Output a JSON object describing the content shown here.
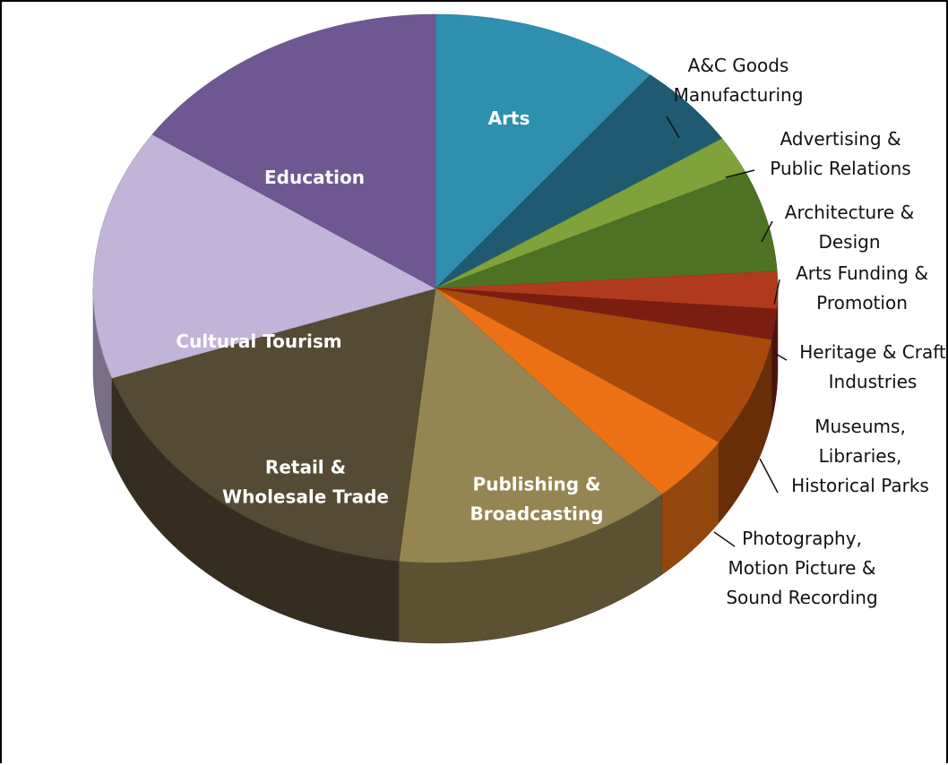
{
  "chart_data": {
    "type": "pie",
    "title": "",
    "style": "3d",
    "slices": [
      {
        "label": "Arts",
        "value": 10.8,
        "color": "#2E8FAE",
        "label_style": "inside"
      },
      {
        "label": "A&C Goods\nManufacturing",
        "value": 5.0,
        "color": "#1F5A70",
        "label_style": "outside"
      },
      {
        "label": "Advertising &\nPublic Relations",
        "value": 2.2,
        "color": "#7FA33A",
        "label_style": "outside"
      },
      {
        "label": "Architecture &\nDesign",
        "value": 6.0,
        "color": "#4E7224",
        "label_style": "outside"
      },
      {
        "label": "Arts Funding &\nPromotion",
        "value": 2.2,
        "color": "#B03A1E",
        "label_style": "outside"
      },
      {
        "label": "Heritage & Craft\nIndustries",
        "value": 1.8,
        "color": "#7A1E12",
        "label_style": "outside"
      },
      {
        "label": "Museums,\nLibraries,\nHistorical Parks",
        "value": 6.5,
        "color": "#A84A0C",
        "label_style": "outside"
      },
      {
        "label": "Photography,\nMotion Picture &\nSound Recording",
        "value": 4.0,
        "color": "#EE7215",
        "label_style": "outside"
      },
      {
        "label": "Publishing &\nBroadcasting",
        "value": 13.2,
        "color": "#958552",
        "label_style": "inside"
      },
      {
        "label": "Retail &\nWholesale Trade",
        "value": 18.0,
        "color": "#554A33",
        "label_style": "inside"
      },
      {
        "label": "Cultural Tourism",
        "value": 14.8,
        "color": "#C2B3D8",
        "label_style": "inside"
      },
      {
        "label": "Education",
        "value": 15.5,
        "color": "#6F5891",
        "label_style": "inside"
      }
    ]
  }
}
